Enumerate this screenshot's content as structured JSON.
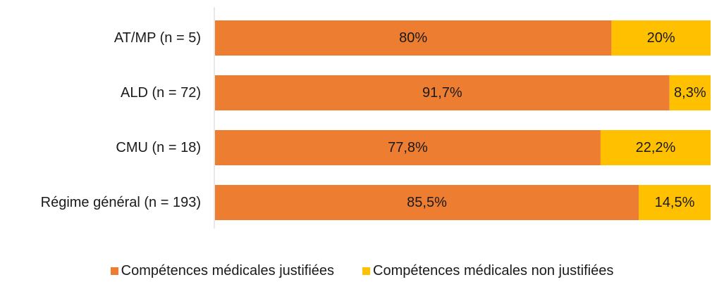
{
  "chart_data": {
    "type": "bar",
    "orientation": "horizontal",
    "stacked": true,
    "percent": true,
    "categories": [
      "AT/MP (n = 5)",
      "ALD (n = 72)",
      "CMU (n = 18)",
      "Régime général (n = 193)"
    ],
    "series": [
      {
        "name": "Compétences médicales justifiées",
        "color": "#ED7D31",
        "values": [
          80,
          91.7,
          77.8,
          85.5
        ],
        "labels": [
          "80%",
          "91,7%",
          "77,8%",
          "85,5%"
        ]
      },
      {
        "name": "Compétences médicales non justifiées",
        "color": "#FFC000",
        "values": [
          20,
          8.3,
          22.2,
          14.5
        ],
        "labels": [
          "20%",
          "8,3%",
          "22,2%",
          "14,5%"
        ]
      }
    ],
    "xlim": [
      0,
      100
    ],
    "grid": false,
    "legend_position": "bottom"
  }
}
